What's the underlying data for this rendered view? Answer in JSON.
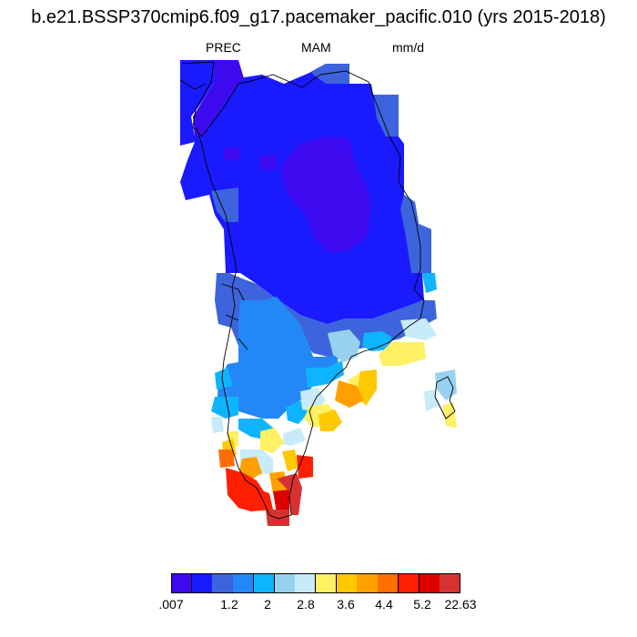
{
  "title": "b.e21.BSSP370cmip6.f09_g17.pacemaker_pacific.010 (yrs 2015-2018)",
  "variable_label": "PREC",
  "season_label": "MAM",
  "units_label": "mm/d",
  "colorbar": {
    "colors": [
      "#3d0af0",
      "#1a1aff",
      "#3d64dc",
      "#2388f5",
      "#0fb4ff",
      "#96d2f0",
      "#c8ebfa",
      "#fff064",
      "#ffc800",
      "#ffa000",
      "#ff6e00",
      "#ff1e00",
      "#dc0000",
      "#d73232"
    ],
    "labels": [
      ".007",
      "1.2",
      "2",
      "2.8",
      "3.6",
      "4.4",
      "5.2",
      "22.63"
    ]
  }
}
